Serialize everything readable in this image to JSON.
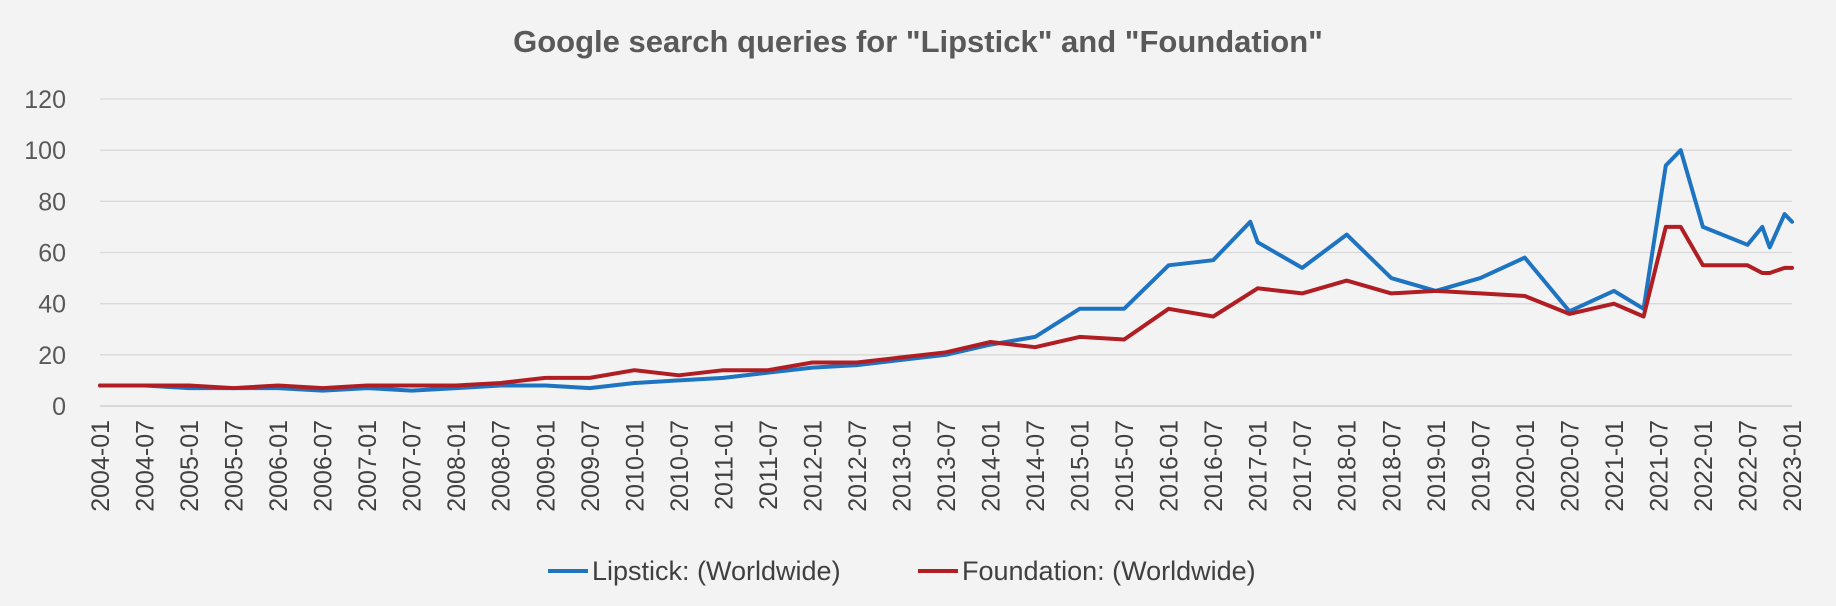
{
  "chart_data": {
    "type": "line",
    "title": "Google search queries for \"Lipstick\" and \"Foundation\"",
    "xlabel": "",
    "ylabel": "",
    "ylim": [
      0,
      120
    ],
    "yticks": [
      0,
      20,
      40,
      60,
      80,
      100,
      120
    ],
    "grid": true,
    "legend_position": "bottom",
    "x_start": "2004-01",
    "x_end": "2023-01",
    "x_tick_labels": [
      "2004-01",
      "2004-07",
      "2005-01",
      "2005-07",
      "2006-01",
      "2006-07",
      "2007-01",
      "2007-07",
      "2008-01",
      "2008-07",
      "2009-01",
      "2009-07",
      "2010-01",
      "2010-07",
      "2011-01",
      "2011-07",
      "2012-01",
      "2012-07",
      "2013-01",
      "2013-07",
      "2014-01",
      "2014-07",
      "2015-01",
      "2015-07",
      "2016-01",
      "2016-07",
      "2017-01",
      "2017-07",
      "2018-01",
      "2018-07",
      "2019-01",
      "2019-07",
      "2020-01",
      "2020-07",
      "2021-01",
      "2021-07",
      "2022-01",
      "2022-07",
      "2023-01"
    ],
    "series": [
      {
        "name": "Lipstick: (Worldwide)",
        "color": "#1f74c2",
        "points": [
          [
            "2004-01",
            8
          ],
          [
            "2004-07",
            8
          ],
          [
            "2005-01",
            7
          ],
          [
            "2005-07",
            7
          ],
          [
            "2006-01",
            7
          ],
          [
            "2006-07",
            6
          ],
          [
            "2007-01",
            7
          ],
          [
            "2007-07",
            6
          ],
          [
            "2008-01",
            7
          ],
          [
            "2008-07",
            8
          ],
          [
            "2009-01",
            8
          ],
          [
            "2009-07",
            7
          ],
          [
            "2010-01",
            9
          ],
          [
            "2010-07",
            10
          ],
          [
            "2011-01",
            11
          ],
          [
            "2011-07",
            13
          ],
          [
            "2012-01",
            15
          ],
          [
            "2012-07",
            16
          ],
          [
            "2013-01",
            18
          ],
          [
            "2013-07",
            20
          ],
          [
            "2014-01",
            24
          ],
          [
            "2014-07",
            27
          ],
          [
            "2015-01",
            38
          ],
          [
            "2015-07",
            38
          ],
          [
            "2016-01",
            55
          ],
          [
            "2016-07",
            57
          ],
          [
            "2016-12",
            72
          ],
          [
            "2017-01",
            64
          ],
          [
            "2017-07",
            54
          ],
          [
            "2018-01",
            67
          ],
          [
            "2018-07",
            50
          ],
          [
            "2019-01",
            45
          ],
          [
            "2019-07",
            50
          ],
          [
            "2020-01",
            58
          ],
          [
            "2020-07",
            37
          ],
          [
            "2021-01",
            45
          ],
          [
            "2021-05",
            38
          ],
          [
            "2021-08",
            94
          ],
          [
            "2021-10",
            100
          ],
          [
            "2022-01",
            70
          ],
          [
            "2022-07",
            63
          ],
          [
            "2022-09",
            70
          ],
          [
            "2022-10",
            62
          ],
          [
            "2022-12",
            75
          ],
          [
            "2023-01",
            72
          ]
        ]
      },
      {
        "name": "Foundation: (Worldwide)",
        "color": "#b01e24",
        "points": [
          [
            "2004-01",
            8
          ],
          [
            "2004-07",
            8
          ],
          [
            "2005-01",
            8
          ],
          [
            "2005-07",
            7
          ],
          [
            "2006-01",
            8
          ],
          [
            "2006-07",
            7
          ],
          [
            "2007-01",
            8
          ],
          [
            "2007-07",
            8
          ],
          [
            "2008-01",
            8
          ],
          [
            "2008-07",
            9
          ],
          [
            "2009-01",
            11
          ],
          [
            "2009-07",
            11
          ],
          [
            "2010-01",
            14
          ],
          [
            "2010-07",
            12
          ],
          [
            "2011-01",
            14
          ],
          [
            "2011-07",
            14
          ],
          [
            "2012-01",
            17
          ],
          [
            "2012-07",
            17
          ],
          [
            "2013-01",
            19
          ],
          [
            "2013-07",
            21
          ],
          [
            "2014-01",
            25
          ],
          [
            "2014-07",
            23
          ],
          [
            "2015-01",
            27
          ],
          [
            "2015-07",
            26
          ],
          [
            "2016-01",
            38
          ],
          [
            "2016-07",
            35
          ],
          [
            "2017-01",
            46
          ],
          [
            "2017-07",
            44
          ],
          [
            "2018-01",
            49
          ],
          [
            "2018-07",
            44
          ],
          [
            "2019-01",
            45
          ],
          [
            "2019-07",
            44
          ],
          [
            "2020-01",
            43
          ],
          [
            "2020-07",
            36
          ],
          [
            "2021-01",
            40
          ],
          [
            "2021-05",
            35
          ],
          [
            "2021-08",
            70
          ],
          [
            "2021-10",
            70
          ],
          [
            "2022-01",
            55
          ],
          [
            "2022-07",
            55
          ],
          [
            "2022-09",
            52
          ],
          [
            "2022-10",
            52
          ],
          [
            "2022-12",
            54
          ],
          [
            "2023-01",
            54
          ]
        ]
      }
    ]
  }
}
